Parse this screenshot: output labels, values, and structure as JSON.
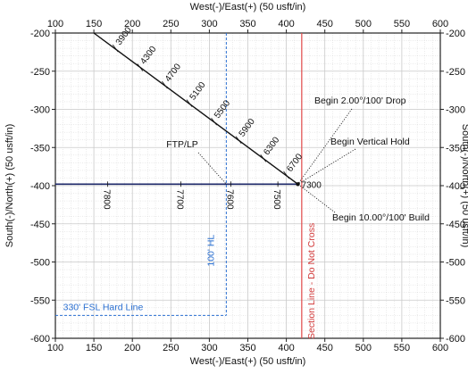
{
  "chart_data": {
    "type": "well-plan",
    "x_axis": {
      "label": "West(-)/East(+) (50 usft/in)",
      "min": 100,
      "max": 600,
      "ticks": [
        100,
        150,
        200,
        250,
        300,
        350,
        400,
        450,
        500,
        550,
        600
      ]
    },
    "y_axis": {
      "label": "South(-)/North(+) (50 usft/in)",
      "min": -600,
      "max": -200,
      "ticks": [
        -200,
        -250,
        -300,
        -350,
        -400,
        -450,
        -500,
        -550,
        -600
      ],
      "right_label": "South(-)/North(+) (50 usft/in)"
    },
    "grid": true,
    "wellpath_curve": {
      "points": [
        [
          150,
          -200
        ],
        [
          415,
          -398
        ]
      ],
      "md_labels": [
        {
          "text": "3900",
          "x": 178,
          "y": -220
        },
        {
          "text": "4300",
          "x": 210,
          "y": -245
        },
        {
          "text": "4700",
          "x": 242,
          "y": -268
        },
        {
          "text": "5100",
          "x": 274,
          "y": -292
        },
        {
          "text": "5500",
          "x": 306,
          "y": -316
        },
        {
          "text": "5900",
          "x": 338,
          "y": -340
        },
        {
          "text": "6300",
          "x": 370,
          "y": -364
        },
        {
          "text": "6700",
          "x": 400,
          "y": -386
        }
      ]
    },
    "lateral": {
      "points": [
        [
          100,
          -398
        ],
        [
          415,
          -398
        ]
      ],
      "md_labels": [
        {
          "text": "7800",
          "x": 168,
          "y": -398
        },
        {
          "text": "7700",
          "x": 263,
          "y": -398
        },
        {
          "text": "7600",
          "x": 328,
          "y": -398
        },
        {
          "text": "7500",
          "x": 389,
          "y": -398
        }
      ],
      "end_label": "7300"
    },
    "points_of_interest": [
      {
        "text": "Begin 2.00°/100' Drop",
        "target": [
          415,
          -398
        ]
      },
      {
        "text": "Begin Vertical Hold",
        "target": [
          415,
          -398
        ]
      },
      {
        "text": "Begin 10.00°/100' Build",
        "target": [
          415,
          -398
        ]
      },
      {
        "text": "FTP/LP",
        "target": [
          322,
          -398
        ]
      }
    ],
    "hard_lines": [
      {
        "text": "100' HL",
        "x": 322,
        "y_from": -200,
        "y_to": -570
      },
      {
        "text": "330' FSL Hard Line",
        "y": -570,
        "x_from": 100,
        "x_to": 322
      }
    ],
    "section_line": {
      "text": "Section Line - Do Not Cross",
      "x": 420
    }
  },
  "colors": {
    "wellpath": "#111111",
    "lateral": "#1f2a6b",
    "hard_line": "#2a6fd1",
    "section_line": "#e04848",
    "grid": "#c9c9c9"
  }
}
